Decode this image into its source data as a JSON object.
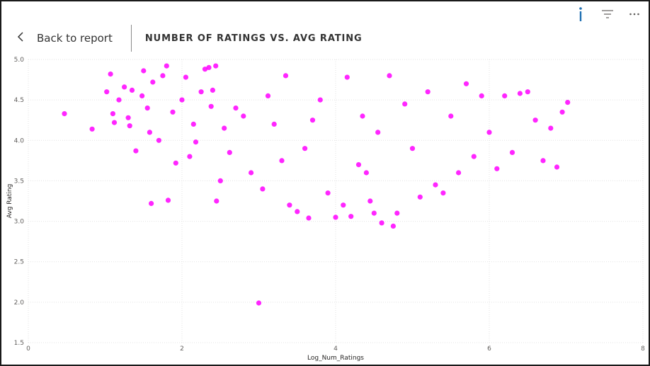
{
  "header": {
    "back_label": "Back to report",
    "title": "NUMBER OF RATINGS VS. AVG RATING"
  },
  "toolbar": {
    "icons": [
      "info-icon",
      "filter-icon",
      "more-options-icon"
    ]
  },
  "colors": {
    "point": "#ff00ff",
    "grid": "#e3e3e3",
    "info_icon": "#1f6fb2"
  },
  "chart_data": {
    "type": "scatter",
    "title": "",
    "xlabel": "Log_Num_Ratings",
    "ylabel": "Avg Rating",
    "xlim": [
      0,
      8
    ],
    "ylim": [
      1.5,
      5.0
    ],
    "x_ticks": [
      0,
      2,
      4,
      6,
      8
    ],
    "y_ticks": [
      1.5,
      2.0,
      2.5,
      3.0,
      3.5,
      4.0,
      4.5,
      5.0
    ],
    "x_tick_labels": [
      "0",
      "2",
      "4",
      "6",
      "8"
    ],
    "y_tick_labels": [
      "1.5",
      "2.0",
      "2.5",
      "3.0",
      "3.5",
      "4.0",
      "4.5",
      "5.0"
    ],
    "grid": true,
    "series": [
      {
        "values": [
          [
            0.47,
            4.33
          ],
          [
            0.83,
            4.14
          ],
          [
            1.02,
            4.6
          ],
          [
            1.07,
            4.82
          ],
          [
            1.1,
            4.33
          ],
          [
            1.12,
            4.22
          ],
          [
            1.18,
            4.5
          ],
          [
            1.25,
            4.66
          ],
          [
            1.3,
            4.28
          ],
          [
            1.32,
            4.18
          ],
          [
            1.35,
            4.62
          ],
          [
            1.4,
            3.87
          ],
          [
            1.48,
            4.55
          ],
          [
            1.5,
            4.86
          ],
          [
            1.55,
            4.4
          ],
          [
            1.58,
            4.1
          ],
          [
            1.6,
            3.22
          ],
          [
            1.62,
            4.72
          ],
          [
            1.7,
            4.0
          ],
          [
            1.75,
            4.8
          ],
          [
            1.8,
            4.92
          ],
          [
            1.82,
            3.26
          ],
          [
            1.88,
            4.35
          ],
          [
            1.92,
            3.72
          ],
          [
            2.0,
            4.5
          ],
          [
            2.05,
            4.78
          ],
          [
            2.1,
            3.8
          ],
          [
            2.15,
            4.2
          ],
          [
            2.18,
            3.98
          ],
          [
            2.25,
            4.6
          ],
          [
            2.3,
            4.88
          ],
          [
            2.35,
            4.9
          ],
          [
            2.38,
            4.42
          ],
          [
            2.4,
            4.62
          ],
          [
            2.44,
            4.92
          ],
          [
            2.45,
            3.25
          ],
          [
            2.5,
            3.5
          ],
          [
            2.55,
            4.15
          ],
          [
            2.62,
            3.85
          ],
          [
            2.7,
            4.4
          ],
          [
            2.8,
            4.3
          ],
          [
            2.9,
            3.6
          ],
          [
            3.0,
            1.99
          ],
          [
            3.05,
            3.4
          ],
          [
            3.12,
            4.55
          ],
          [
            3.2,
            4.2
          ],
          [
            3.3,
            3.75
          ],
          [
            3.35,
            4.8
          ],
          [
            3.4,
            3.2
          ],
          [
            3.5,
            3.12
          ],
          [
            3.6,
            3.9
          ],
          [
            3.65,
            3.04
          ],
          [
            3.7,
            4.25
          ],
          [
            3.8,
            4.5
          ],
          [
            3.9,
            3.35
          ],
          [
            4.0,
            3.05
          ],
          [
            4.1,
            3.2
          ],
          [
            4.15,
            4.78
          ],
          [
            4.2,
            3.06
          ],
          [
            4.3,
            3.7
          ],
          [
            4.35,
            4.3
          ],
          [
            4.4,
            3.6
          ],
          [
            4.45,
            3.25
          ],
          [
            4.5,
            3.1
          ],
          [
            4.55,
            4.1
          ],
          [
            4.6,
            2.98
          ],
          [
            4.7,
            4.8
          ],
          [
            4.75,
            2.94
          ],
          [
            4.8,
            3.1
          ],
          [
            4.9,
            4.45
          ],
          [
            5.0,
            3.9
          ],
          [
            5.1,
            3.3
          ],
          [
            5.2,
            4.6
          ],
          [
            5.3,
            3.45
          ],
          [
            5.4,
            3.35
          ],
          [
            5.5,
            4.3
          ],
          [
            5.6,
            3.6
          ],
          [
            5.7,
            4.7
          ],
          [
            5.8,
            3.8
          ],
          [
            5.9,
            4.55
          ],
          [
            6.0,
            4.1
          ],
          [
            6.1,
            3.65
          ],
          [
            6.2,
            4.55
          ],
          [
            6.3,
            3.85
          ],
          [
            6.4,
            4.58
          ],
          [
            6.5,
            4.6
          ],
          [
            6.6,
            4.25
          ],
          [
            6.7,
            3.75
          ],
          [
            6.8,
            4.15
          ],
          [
            6.88,
            3.67
          ],
          [
            6.95,
            4.35
          ],
          [
            7.02,
            4.47
          ]
        ]
      }
    ]
  }
}
